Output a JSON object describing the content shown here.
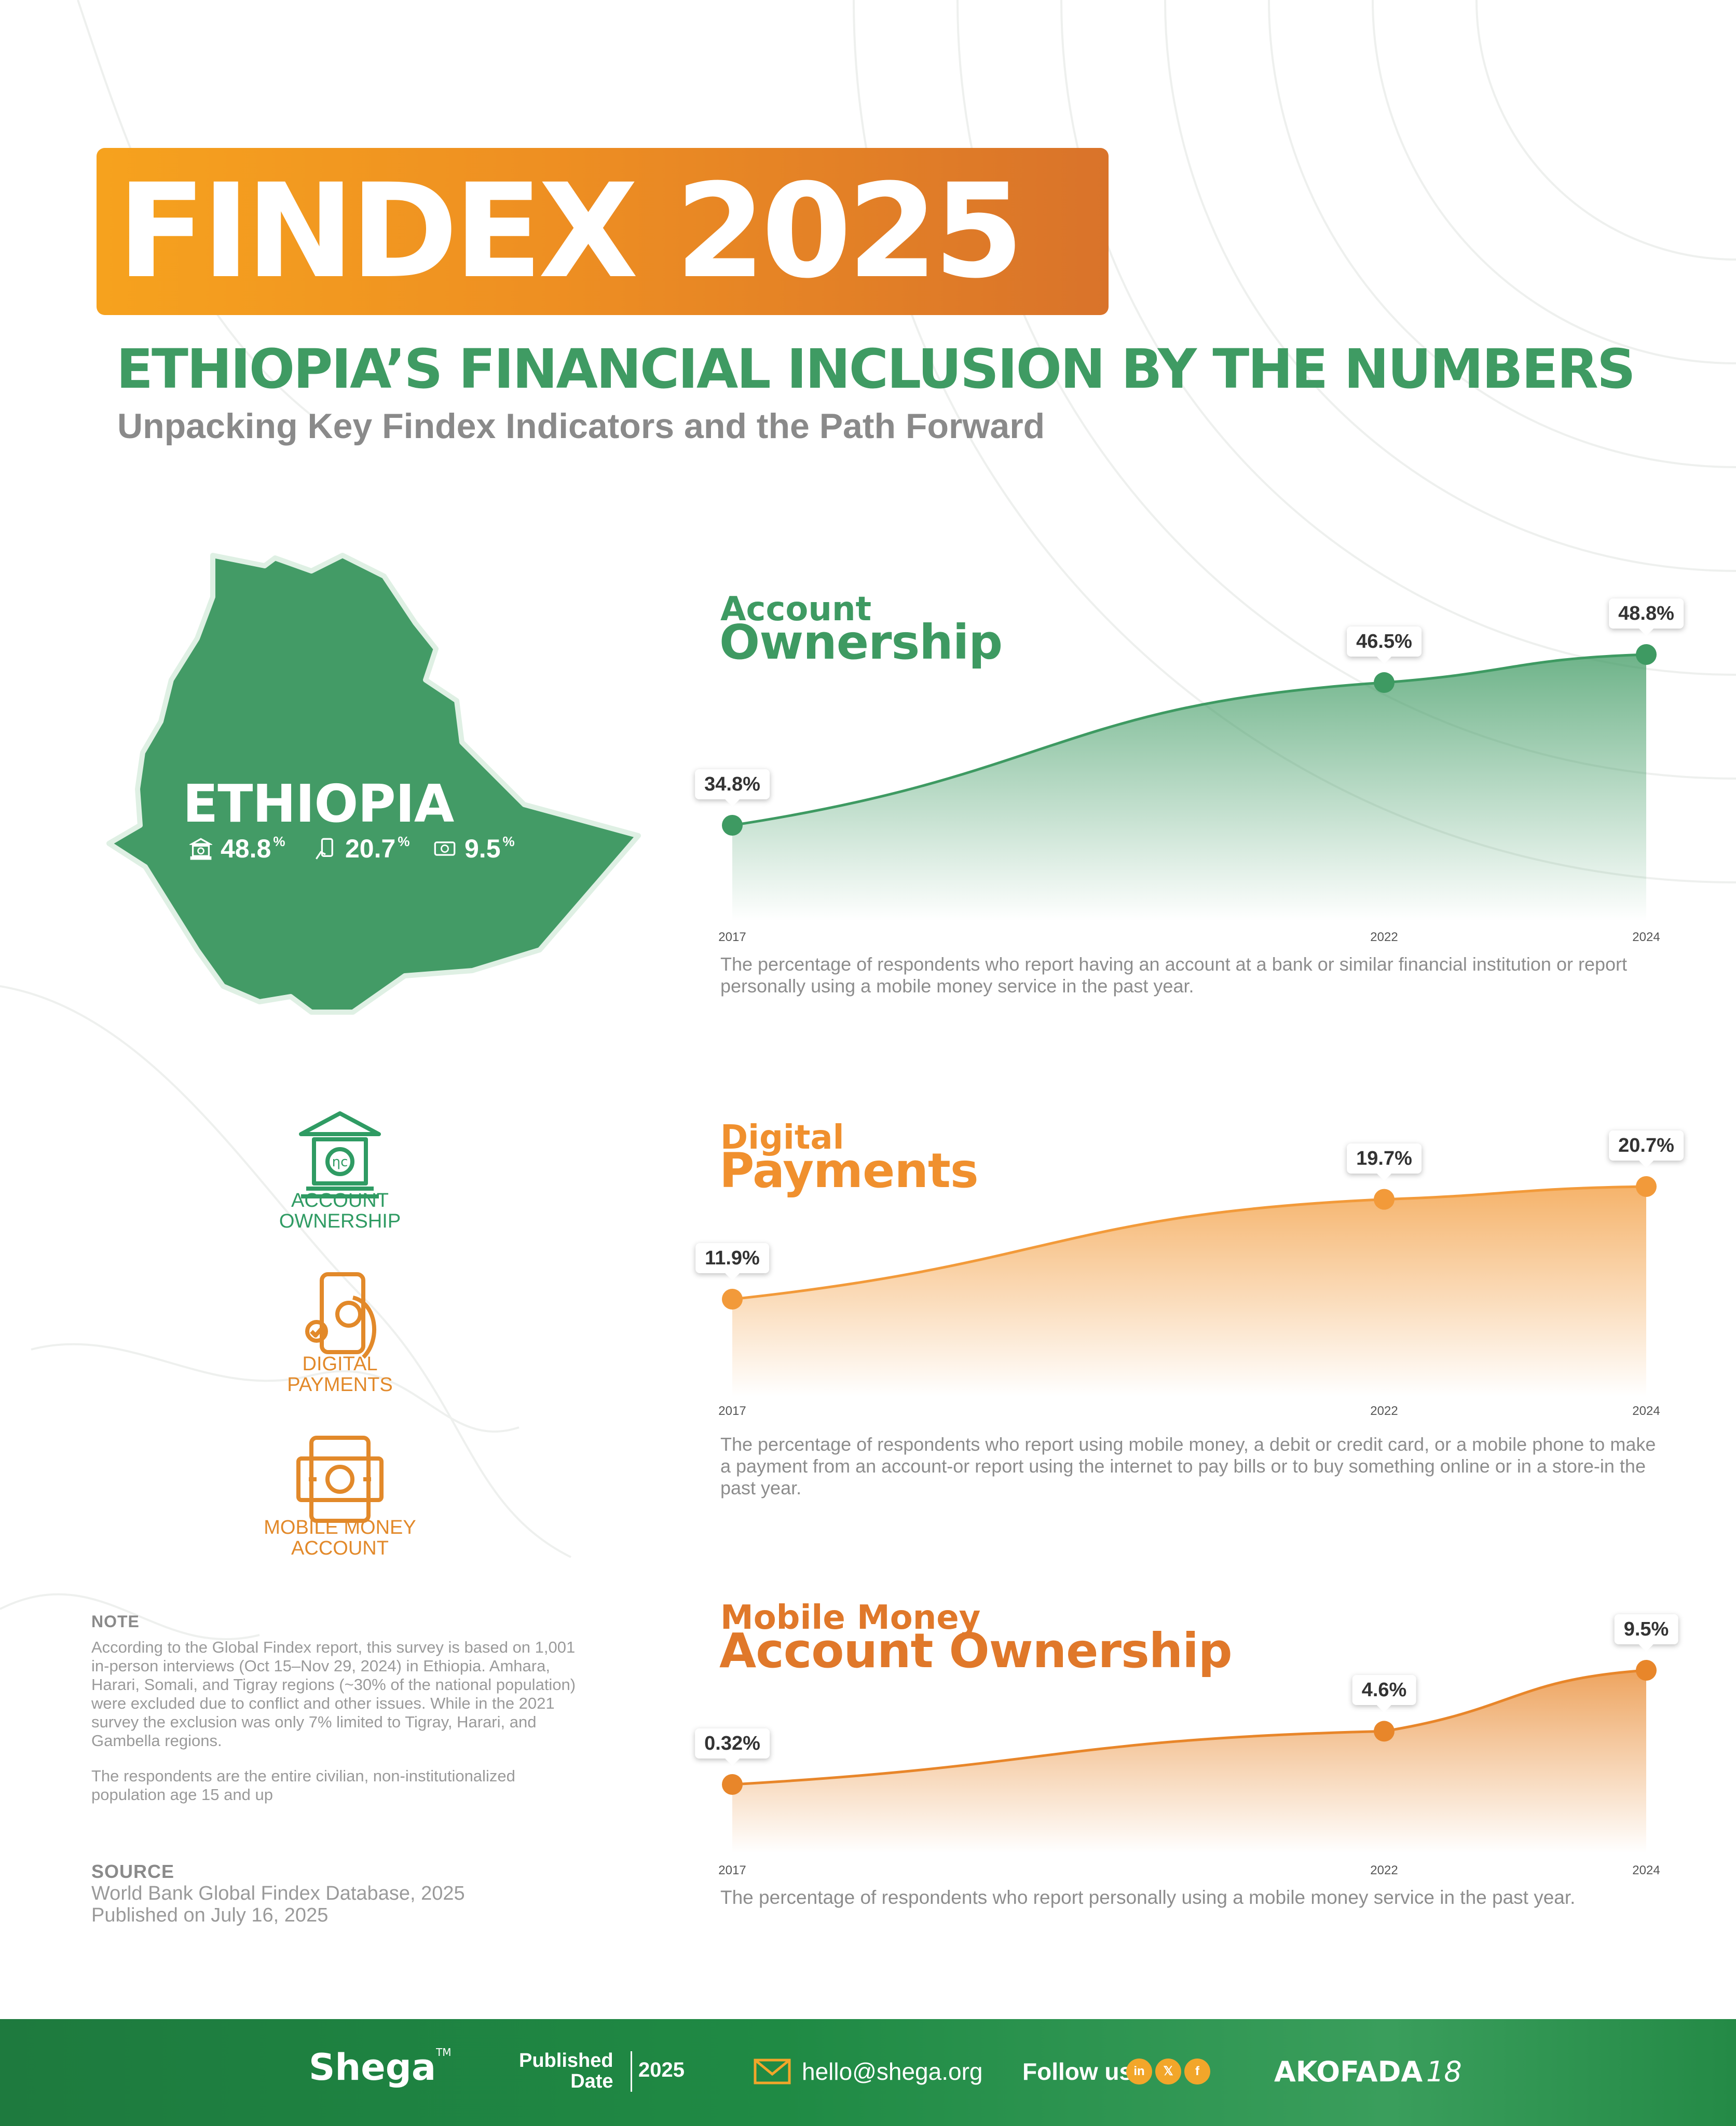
{
  "header": {
    "banner_title": "FINDEX 2025",
    "headline": "ETHIOPIA’S FINANCIAL INCLUSION BY THE NUMBERS",
    "subheadline": "Unpacking Key Findex Indicators and the Path Forward"
  },
  "map": {
    "country": "ETHIOPIA",
    "stats": [
      {
        "icon": "bank-icon",
        "value": "48.8",
        "unit": "%"
      },
      {
        "icon": "phone-payment-icon",
        "value": "20.7",
        "unit": "%"
      },
      {
        "icon": "money-icon",
        "value": "9.5",
        "unit": "%"
      }
    ]
  },
  "legend": [
    {
      "icon": "bank-icon",
      "label_line1": "ACCOUNT",
      "label_line2": "OWNERSHIP",
      "color": "#2f9b63"
    },
    {
      "icon": "phone-payment-icon",
      "label_line1": "DIGITAL",
      "label_line2": "PAYMENTS",
      "color": "#e2892a"
    },
    {
      "icon": "money-icon",
      "label_line1": "MOBILE MONEY",
      "label_line2": "ACCOUNT",
      "color": "#e2892a"
    }
  ],
  "note": {
    "heading": "NOTE",
    "paragraph1": "According to the Global Findex report, this survey is based on 1,001 in-person interviews (Oct 15–Nov 29, 2024) in Ethiopia. Amhara, Harari, Somali, and Tigray regions (~30% of the national population) were excluded due to conflict and other issues. While in the 2021 survey the exclusion was only 7% limited to Tigray, Harari, and Gambella regions.",
    "paragraph2": "The respondents are the entire civilian, non-institutionalized population age 15 and up"
  },
  "source": {
    "heading": "SOURCE",
    "line1": "World Bank Global Findex Database, 2025",
    "line2": "Published on July 16, 2025"
  },
  "chart_data": [
    {
      "type": "area",
      "title_line1": "Account",
      "title_line2": "Ownership",
      "x": [
        "2017",
        "2022",
        "2024"
      ],
      "values": [
        34.8,
        46.5,
        48.8
      ],
      "labels": [
        "34.8%",
        "46.5%",
        "48.8%"
      ],
      "description": "The percentage of respondents who report having an account at a bank or similar financial institution or report personally using a mobile money service in the past year.",
      "color": "#3e9a62"
    },
    {
      "type": "area",
      "title_line1": "Digital",
      "title_line2": "Payments",
      "x": [
        "2017",
        "2022",
        "2024"
      ],
      "values": [
        11.9,
        19.7,
        20.7
      ],
      "labels": [
        "11.9%",
        "19.7%",
        "20.7%"
      ],
      "description": "The percentage of respondents who report using mobile money, a debit or credit card, or a mobile phone to make a payment from an account-or report using the internet to pay bills or to buy something online or in a store-in the past year.",
      "color": "#f29a3a"
    },
    {
      "type": "area",
      "title_line1": "Mobile Money",
      "title_line2": "Account Ownership",
      "x": [
        "2017",
        "2022",
        "2024"
      ],
      "values": [
        0.32,
        4.6,
        9.5
      ],
      "labels": [
        "0.32%",
        "4.6%",
        "9.5%"
      ],
      "description": "The percentage of respondents who report personally using a mobile money service in the past year.",
      "color": "#e8862a"
    }
  ],
  "footer": {
    "brand": "Shega",
    "brand_tm": "TM",
    "published_line1": "Published",
    "published_line2": "Date",
    "published_year": "2025",
    "email": "hello@shega.org",
    "follow": "Follow us",
    "social": [
      "in",
      "𝕏",
      "f"
    ],
    "partner": "AKOFADA",
    "partner_number": "18"
  }
}
